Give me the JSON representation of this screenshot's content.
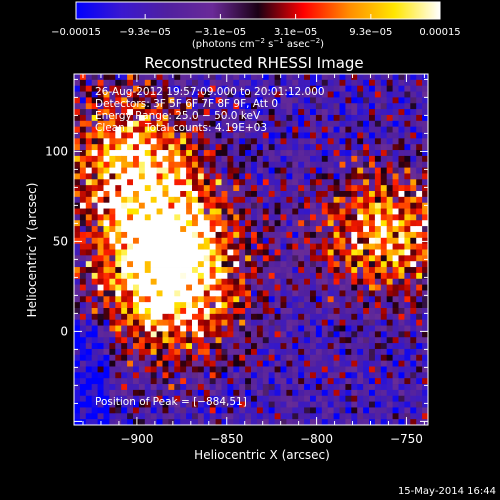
{
  "chart_data": {
    "type": "heatmap",
    "title": "Reconstructed RHESSI Image",
    "xlabel": "Heliocentric X (arcsec)",
    "ylabel": "Heliocentric Y (arcsec)",
    "xlim": [
      -935,
      -738
    ],
    "ylim": [
      -52,
      143
    ],
    "x_ticks": [
      {
        "value": -900,
        "label": "−900"
      },
      {
        "value": -850,
        "label": "−850"
      },
      {
        "value": -800,
        "label": "−800"
      },
      {
        "value": -750,
        "label": "−750"
      }
    ],
    "y_ticks": [
      {
        "value": 0,
        "label": "0"
      },
      {
        "value": 50,
        "label": "50"
      },
      {
        "value": 100,
        "label": "100"
      }
    ],
    "colorbar": {
      "range": [
        -0.00015,
        0.00015
      ],
      "tick_values": [
        -0.00015,
        -9.3e-05,
        -3.1e-05,
        3.1e-05,
        9.3e-05,
        0.00015
      ],
      "tick_labels": [
        "−0.00015",
        "−9.3e−05",
        "−3.1e−05",
        "3.1e−05",
        "9.3e−05",
        "0.00015"
      ],
      "units_parts": [
        "(photons cm",
        "−2",
        " s",
        "−1",
        " asec",
        "−2",
        ")"
      ],
      "colors": [
        "#0000ff",
        "#3a18d0",
        "#5020a0",
        "#6a2a98",
        "#1a0014",
        "#ff0000",
        "#ff8c00",
        "#ffe600",
        "#ffffff"
      ]
    },
    "annotations": {
      "time": "26‐Aug‐2012 19:57:09.000 to 20:01:12.000",
      "detectors": "Detectors: 3F 5F 6F 7F 8F 9F, Att 0",
      "energy": "Energy Range: 25.0 − 50.0 keV",
      "method": "Clean",
      "counts": "Total counts: 4.19E+03",
      "peak": "Position of Peak = [−884,51]"
    },
    "peak_position": [
      -884,
      51
    ],
    "bright_regions": [
      {
        "x": -884,
        "y": 51,
        "level": 1.0
      },
      {
        "x": -905,
        "y": 98,
        "level": 0.8
      },
      {
        "x": -880,
        "y": 15,
        "level": 0.7
      },
      {
        "x": -760,
        "y": 55,
        "level": 0.8
      }
    ]
  },
  "footer": {
    "date": "15‐May‐2014 16:44"
  }
}
